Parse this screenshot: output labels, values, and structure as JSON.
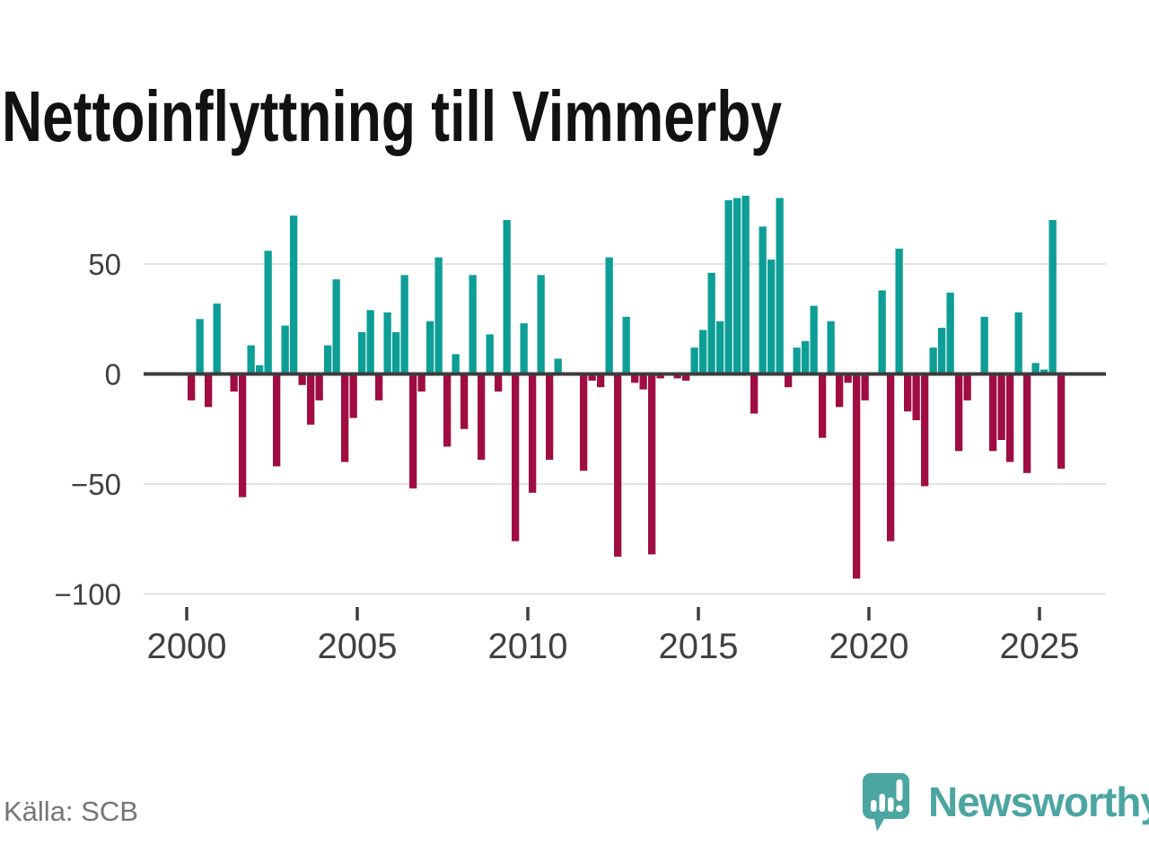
{
  "page": {
    "title": "Nettoinflyttning till Vimmerby",
    "source": "Källa: SCB"
  },
  "branding": {
    "wordmark": "Newsworthy",
    "icon": "newsworthy-speech-bubble-bar-chart-icon",
    "color": "#4BA5A1"
  },
  "colors": {
    "positive_bar": "#0D9E96",
    "negative_bar": "#A00D42",
    "grid_line": "#E2E2E2",
    "zero_line": "#3C3C3C",
    "axis_text": "#404040",
    "title_text": "#121212",
    "source_text": "#757575"
  },
  "chart_data": {
    "type": "bar",
    "title": "Nettoinflyttning till Vimmerby",
    "frequency": "quarterly",
    "start_period": "2000Q1",
    "end_period": "2025Q3",
    "values": [
      -12,
      25,
      -15,
      32,
      0,
      -8,
      -56,
      13,
      4,
      56,
      -42,
      22,
      72,
      -5,
      -23,
      -12,
      13,
      43,
      -40,
      -20,
      19,
      29,
      -12,
      28,
      19,
      45,
      -52,
      -8,
      24,
      53,
      -33,
      9,
      -25,
      45,
      -39,
      18,
      -8,
      70,
      -76,
      23,
      -54,
      45,
      -39,
      7,
      0,
      0,
      -44,
      -3,
      -6,
      53,
      -83,
      26,
      -4,
      -7,
      -82,
      -2,
      0,
      -2,
      -3,
      12,
      20,
      46,
      24,
      79,
      80,
      81,
      -18,
      67,
      52,
      80,
      -6,
      12,
      15,
      31,
      -29,
      24,
      -15,
      -4,
      -93,
      -12,
      0,
      38,
      -76,
      57,
      -17,
      -21,
      -51,
      12,
      21,
      37,
      -35,
      -12,
      0,
      26,
      -35,
      -30,
      -40,
      28,
      -45,
      5,
      2,
      70,
      -43
    ],
    "xticks": [
      2000,
      2005,
      2010,
      2015,
      2020,
      2025
    ],
    "yticks": [
      50,
      0,
      -50,
      -100
    ],
    "ytick_labels": [
      "50",
      "0",
      "−50",
      "−100"
    ],
    "ylim": [
      -110,
      92
    ],
    "grid": true,
    "legend": false,
    "positive_color": "#0D9E96",
    "negative_color": "#A00D42"
  }
}
